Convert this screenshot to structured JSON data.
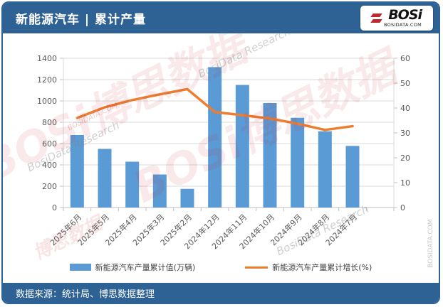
{
  "header": {
    "title": "新能源汽车 | 累计产量",
    "logo": {
      "text": "BOSi",
      "sub": "BOSIDATA.COM"
    }
  },
  "footer": {
    "source": "数据来源：统计局、博思数据整理"
  },
  "watermarks": {
    "brand": "BOSi",
    "brand_cn": "博思数据",
    "brand_en": "BosiData Research",
    "domain": "BOSIDATA.COM"
  },
  "colors": {
    "brand_blue": "#2E6294",
    "bar_blue": "#5B9BD5",
    "line_orange": "#ED7D31",
    "axis_text": "#595959",
    "gridline": "#D9D9D9",
    "watermark_red": "#C0272D"
  },
  "chart_data": {
    "type": "combo-bar-line",
    "title": "新能源汽车 | 累计产量",
    "categories": [
      "2025年6月",
      "2025年5月",
      "2025年4月",
      "2025年3月",
      "2025年2月",
      "2024年12月",
      "2024年11月",
      "2024年10月",
      "2024年9月",
      "2024年8月",
      "2024年7月"
    ],
    "series": [
      {
        "name": "新能源汽车产量累计值(万辆)",
        "type": "bar",
        "axis": "left",
        "color": "#5B9BD5",
        "values": [
          680,
          550,
          430,
          310,
          175,
          1317,
          1150,
          980,
          842,
          715,
          578
        ]
      },
      {
        "name": "新能源汽车产量累计增长(%)",
        "type": "line",
        "axis": "right",
        "color": "#ED7D31",
        "values": [
          36.0,
          40.3,
          43.2,
          45.5,
          47.6,
          38.4,
          37.1,
          35.8,
          33.7,
          31.2,
          32.7
        ]
      }
    ],
    "left_axis": {
      "min": 0,
      "max": 1400,
      "step": 200,
      "ticks": [
        0,
        200,
        400,
        600,
        800,
        1000,
        1200,
        1400
      ]
    },
    "right_axis": {
      "min": 0,
      "max": 60,
      "step": 10,
      "ticks": [
        0,
        10,
        20,
        30,
        40,
        50,
        60
      ]
    },
    "grid": true,
    "legend_position": "bottom",
    "x_label_rotation": -45
  }
}
